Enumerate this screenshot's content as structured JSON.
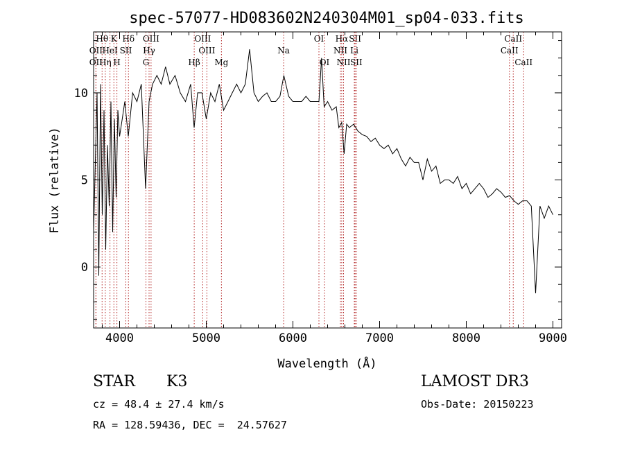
{
  "chart_data": {
    "type": "line",
    "title": "spec-57077-HD083602N240304M01_sp04-033.fits",
    "xlabel": "Wavelength (Å)",
    "ylabel": "Flux (relative)",
    "xlim": [
      3700,
      9100
    ],
    "ylim": [
      -3.5,
      13.5
    ],
    "xticks": [
      4000,
      5000,
      6000,
      7000,
      8000,
      9000
    ],
    "xtick_labels": [
      "4000",
      "5000",
      "6000",
      "7000",
      "8000",
      "9000"
    ],
    "yticks": [
      0,
      5,
      10
    ],
    "ytick_labels": [
      "0",
      "5",
      "10"
    ],
    "grid": false,
    "series": [
      {
        "name": "flux",
        "x": [
          3700,
          3720,
          3740,
          3760,
          3780,
          3800,
          3820,
          3840,
          3860,
          3880,
          3900,
          3920,
          3940,
          3960,
          3980,
          4000,
          4030,
          4060,
          4100,
          4150,
          4200,
          4250,
          4300,
          4340,
          4380,
          4430,
          4480,
          4530,
          4580,
          4640,
          4700,
          4760,
          4820,
          4860,
          4900,
          4950,
          5000,
          5050,
          5100,
          5150,
          5200,
          5250,
          5300,
          5350,
          5400,
          5450,
          5500,
          5550,
          5600,
          5650,
          5700,
          5750,
          5800,
          5850,
          5895,
          5950,
          6000,
          6050,
          6100,
          6150,
          6200,
          6250,
          6300,
          6330,
          6360,
          6400,
          6450,
          6500,
          6530,
          6563,
          6590,
          6620,
          6650,
          6700,
          6750,
          6800,
          6850,
          6900,
          6950,
          7000,
          7050,
          7100,
          7150,
          7200,
          7250,
          7300,
          7350,
          7400,
          7450,
          7500,
          7550,
          7600,
          7650,
          7700,
          7750,
          7800,
          7850,
          7900,
          7950,
          8000,
          8050,
          8100,
          8150,
          8200,
          8250,
          8300,
          8350,
          8400,
          8450,
          8500,
          8550,
          8600,
          8650,
          8700,
          8750,
          8800,
          8850,
          8900,
          8950,
          9000
        ],
        "y": [
          2.0,
          6.0,
          10.0,
          -0.5,
          10.5,
          3.0,
          9.0,
          1.0,
          7.0,
          3.5,
          9.5,
          2.0,
          8.5,
          4.0,
          9.0,
          7.5,
          8.5,
          9.5,
          7.5,
          10.0,
          9.5,
          10.5,
          4.5,
          9.5,
          10.5,
          11.0,
          10.5,
          11.5,
          10.5,
          11.0,
          10.0,
          9.5,
          10.5,
          8.0,
          10.0,
          10.0,
          8.5,
          10.0,
          9.5,
          10.5,
          9.0,
          9.5,
          10.0,
          10.5,
          10.0,
          10.5,
          12.5,
          10.0,
          9.5,
          9.8,
          10.0,
          9.5,
          9.5,
          9.8,
          11.0,
          9.8,
          9.5,
          9.5,
          9.5,
          9.8,
          9.5,
          9.5,
          9.5,
          12.0,
          9.2,
          9.5,
          9.0,
          9.2,
          8.0,
          8.3,
          6.5,
          8.2,
          8.0,
          8.2,
          7.8,
          7.6,
          7.5,
          7.2,
          7.4,
          7.0,
          6.8,
          7.0,
          6.5,
          6.8,
          6.2,
          5.8,
          6.3,
          6.0,
          6.0,
          5.0,
          6.2,
          5.5,
          5.8,
          4.8,
          5.0,
          5.0,
          4.8,
          5.2,
          4.5,
          4.8,
          4.2,
          4.5,
          4.8,
          4.5,
          4.0,
          4.2,
          4.5,
          4.3,
          4.0,
          4.1,
          3.8,
          3.6,
          3.8,
          3.8,
          3.5,
          -1.5,
          3.5,
          2.8,
          3.5,
          3.0
        ]
      }
    ],
    "lines": [
      {
        "name": "Hθ",
        "x": 3798,
        "row": 1
      },
      {
        "name": "OII",
        "x": 3727,
        "row": 2
      },
      {
        "name": "OII",
        "x": 3727,
        "row": 3
      },
      {
        "name": "Hη",
        "x": 3835,
        "row": 3
      },
      {
        "name": "K",
        "x": 3934,
        "row": 1
      },
      {
        "name": "HeI",
        "x": 3889,
        "row": 2
      },
      {
        "name": "H",
        "x": 3969,
        "row": 3
      },
      {
        "name": "Hδ",
        "x": 4102,
        "row": 1
      },
      {
        "name": "SII",
        "x": 4072,
        "row": 2
      },
      {
        "name": "OIII",
        "x": 4363,
        "row": 1
      },
      {
        "name": "Hγ",
        "x": 4340,
        "row": 2
      },
      {
        "name": "G",
        "x": 4304,
        "row": 3
      },
      {
        "name": "Hβ",
        "x": 4861,
        "row": 3
      },
      {
        "name": "OIII",
        "x": 4959,
        "row": 1
      },
      {
        "name": "OIII",
        "x": 5007,
        "row": 2
      },
      {
        "name": "Mg",
        "x": 5175,
        "row": 3
      },
      {
        "name": "Na",
        "x": 5893,
        "row": 2
      },
      {
        "name": "OI",
        "x": 6300,
        "row": 1
      },
      {
        "name": "OI",
        "x": 6364,
        "row": 3
      },
      {
        "name": "Hα",
        "x": 6563,
        "row": 1
      },
      {
        "name": "NII",
        "x": 6548,
        "row": 2
      },
      {
        "name": "NII",
        "x": 6584,
        "row": 3
      },
      {
        "name": "SII",
        "x": 6717,
        "row": 1
      },
      {
        "name": "Li",
        "x": 6708,
        "row": 2
      },
      {
        "name": "SII",
        "x": 6731,
        "row": 3
      },
      {
        "name": "CaII",
        "x": 8542,
        "row": 1
      },
      {
        "name": "CaII",
        "x": 8498,
        "row": 2
      },
      {
        "name": "CaII",
        "x": 8662,
        "row": 3
      }
    ]
  },
  "info": {
    "object_type": "STAR",
    "subclass": "K3",
    "survey": "LAMOST DR3",
    "cz": "cz = 48.4 ± 27.4 km/s",
    "obs_date": "Obs-Date: 20150223",
    "coords": "RA = 128.59436, DEC =  24.57627"
  }
}
